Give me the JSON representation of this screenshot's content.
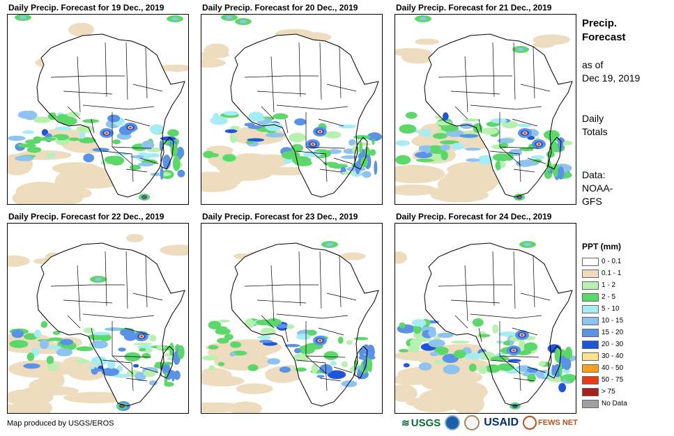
{
  "panels": [
    {
      "title": "Daily Precip. Forecast for 19 Dec., 2019",
      "day": 0
    },
    {
      "title": "Daily Precip. Forecast for 20 Dec., 2019",
      "day": 1
    },
    {
      "title": "Daily Precip. Forecast for 21 Dec., 2019",
      "day": 2
    },
    {
      "title": "Daily Precip. Forecast for 22 Dec., 2019",
      "day": 3
    },
    {
      "title": "Daily Precip. Forecast for 23 Dec., 2019",
      "day": 4
    },
    {
      "title": "Daily Precip. Forecast for 24 Dec., 2019",
      "day": 5
    }
  ],
  "side": {
    "title_line1": "Precip.",
    "title_line2": "Forecast",
    "asof_line1": "as of",
    "asof_line2": "Dec 19, 2019",
    "totals_line1": "Daily",
    "totals_line2": "Totals",
    "data_line1": "Data:",
    "data_line2": "NOAA-",
    "data_line3": "GFS"
  },
  "legend": {
    "title": "PPT (mm)",
    "items": [
      {
        "label": "0 - 0.1",
        "color": "#ffffff"
      },
      {
        "label": "0.1 - 1",
        "color": "#eedcbf"
      },
      {
        "label": "1 - 2",
        "color": "#b8f0b0"
      },
      {
        "label": "2 - 5",
        "color": "#5cd86a"
      },
      {
        "label": "5 - 10",
        "color": "#a6ecf4"
      },
      {
        "label": "10 - 15",
        "color": "#8ec2ef"
      },
      {
        "label": "15 - 20",
        "color": "#5a92e6"
      },
      {
        "label": "20 - 30",
        "color": "#1f55d8"
      },
      {
        "label": "30 - 40",
        "color": "#fde38a"
      },
      {
        "label": "40 - 50",
        "color": "#f7a21b"
      },
      {
        "label": "50 - 75",
        "color": "#ee3a12"
      },
      {
        "label": "> 75",
        "color": "#a3201c"
      },
      {
        "label": "No Data",
        "color": "#a0a0a0"
      }
    ]
  },
  "footer": {
    "credit": "Map produced by USGS/EROS"
  },
  "logos": {
    "usgs": "USGS",
    "usaid": "USAID",
    "fews": "FEWS NET"
  }
}
